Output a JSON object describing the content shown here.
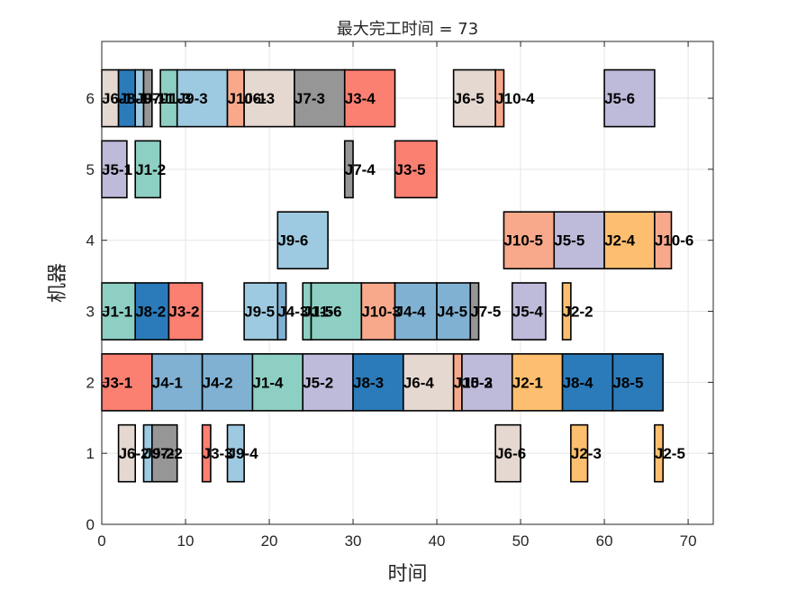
{
  "chart_data": {
    "type": "gantt",
    "title": "最大完工时间 = 73",
    "xlabel": "时间",
    "ylabel": "机器",
    "xlim": [
      0,
      73
    ],
    "ylim": [
      0,
      6.8
    ],
    "xticks": [
      0,
      10,
      20,
      30,
      40,
      50,
      60,
      70
    ],
    "yticks": [
      0,
      1,
      2,
      3,
      4,
      5,
      6
    ],
    "grid": true,
    "job_colors": {
      "J1": "#8ecfc3",
      "J2": "#fdbf6f",
      "J3": "#fb8072",
      "J4": "#80b1d3",
      "J5": "#bebada",
      "J6": "#e5d8d1",
      "J7": "#969696",
      "J8": "#2b7bba",
      "J9": "#9ecae1",
      "J10": "#f8a98b"
    },
    "tasks": [
      {
        "machine": 6,
        "label": "J6-1",
        "start": 0,
        "end": 2
      },
      {
        "machine": 6,
        "label": "J8-1",
        "start": 2,
        "end": 4
      },
      {
        "machine": 6,
        "label": "J9-1",
        "start": 4,
        "end": 5
      },
      {
        "machine": 6,
        "label": "J7-1",
        "start": 5,
        "end": 6
      },
      {
        "machine": 6,
        "label": "J1-3",
        "start": 7,
        "end": 9
      },
      {
        "machine": 6,
        "label": "J9-3",
        "start": 9,
        "end": 15
      },
      {
        "machine": 6,
        "label": "J10-1",
        "start": 15,
        "end": 17
      },
      {
        "machine": 6,
        "label": "J6-3",
        "start": 17,
        "end": 23
      },
      {
        "machine": 6,
        "label": "J7-3",
        "start": 23,
        "end": 29
      },
      {
        "machine": 6,
        "label": "J3-4",
        "start": 29,
        "end": 35
      },
      {
        "machine": 6,
        "label": "J6-5",
        "start": 42,
        "end": 47
      },
      {
        "machine": 6,
        "label": "J10-4",
        "start": 47,
        "end": 48
      },
      {
        "machine": 6,
        "label": "J5-6",
        "start": 60,
        "end": 66
      },
      {
        "machine": 5,
        "label": "J5-1",
        "start": 0,
        "end": 3
      },
      {
        "machine": 5,
        "label": "J1-2",
        "start": 4,
        "end": 7
      },
      {
        "machine": 5,
        "label": "J7-4",
        "start": 29,
        "end": 30
      },
      {
        "machine": 5,
        "label": "J3-5",
        "start": 35,
        "end": 40
      },
      {
        "machine": 4,
        "label": "J9-6",
        "start": 21,
        "end": 27
      },
      {
        "machine": 4,
        "label": "J10-5",
        "start": 48,
        "end": 54
      },
      {
        "machine": 4,
        "label": "J5-5",
        "start": 54,
        "end": 60
      },
      {
        "machine": 4,
        "label": "J2-4",
        "start": 60,
        "end": 66
      },
      {
        "machine": 4,
        "label": "J10-6",
        "start": 66,
        "end": 68
      },
      {
        "machine": 3,
        "label": "J1-1",
        "start": 0,
        "end": 4
      },
      {
        "machine": 3,
        "label": "J8-2",
        "start": 4,
        "end": 8
      },
      {
        "machine": 3,
        "label": "J3-2",
        "start": 8,
        "end": 12
      },
      {
        "machine": 3,
        "label": "J9-5",
        "start": 17,
        "end": 21
      },
      {
        "machine": 3,
        "label": "J4-3",
        "start": 21,
        "end": 22
      },
      {
        "machine": 3,
        "label": "J1-5",
        "start": 24,
        "end": 25
      },
      {
        "machine": 3,
        "label": "J1-6",
        "start": 25,
        "end": 31
      },
      {
        "machine": 3,
        "label": "J10-3",
        "start": 31,
        "end": 35
      },
      {
        "machine": 3,
        "label": "J4-4",
        "start": 35,
        "end": 40
      },
      {
        "machine": 3,
        "label": "J4-5",
        "start": 40,
        "end": 44
      },
      {
        "machine": 3,
        "label": "J7-5",
        "start": 44,
        "end": 45
      },
      {
        "machine": 3,
        "label": "J5-4",
        "start": 49,
        "end": 53
      },
      {
        "machine": 3,
        "label": "J2-2",
        "start": 55,
        "end": 56
      },
      {
        "machine": 2,
        "label": "J3-1",
        "start": 0,
        "end": 6
      },
      {
        "machine": 2,
        "label": "J4-1",
        "start": 6,
        "end": 12
      },
      {
        "machine": 2,
        "label": "J4-2",
        "start": 12,
        "end": 18
      },
      {
        "machine": 2,
        "label": "J1-4",
        "start": 18,
        "end": 24
      },
      {
        "machine": 2,
        "label": "J5-2",
        "start": 24,
        "end": 30
      },
      {
        "machine": 2,
        "label": "J8-3",
        "start": 30,
        "end": 36
      },
      {
        "machine": 2,
        "label": "J6-4",
        "start": 36,
        "end": 42
      },
      {
        "machine": 2,
        "label": "J10-2",
        "start": 42,
        "end": 43
      },
      {
        "machine": 2,
        "label": "J5-3",
        "start": 43,
        "end": 49
      },
      {
        "machine": 2,
        "label": "J2-1",
        "start": 49,
        "end": 55
      },
      {
        "machine": 2,
        "label": "J8-4",
        "start": 55,
        "end": 61
      },
      {
        "machine": 2,
        "label": "J8-5",
        "start": 61,
        "end": 67
      },
      {
        "machine": 1,
        "label": "J6-2",
        "start": 2,
        "end": 4
      },
      {
        "machine": 1,
        "label": "J9-2",
        "start": 5,
        "end": 6
      },
      {
        "machine": 1,
        "label": "J7-2",
        "start": 6,
        "end": 9
      },
      {
        "machine": 1,
        "label": "J3-3",
        "start": 12,
        "end": 13
      },
      {
        "machine": 1,
        "label": "J9-4",
        "start": 15,
        "end": 17
      },
      {
        "machine": 1,
        "label": "J6-6",
        "start": 47,
        "end": 50
      },
      {
        "machine": 1,
        "label": "J2-3",
        "start": 56,
        "end": 58
      },
      {
        "machine": 1,
        "label": "J2-5",
        "start": 66,
        "end": 67
      }
    ]
  }
}
